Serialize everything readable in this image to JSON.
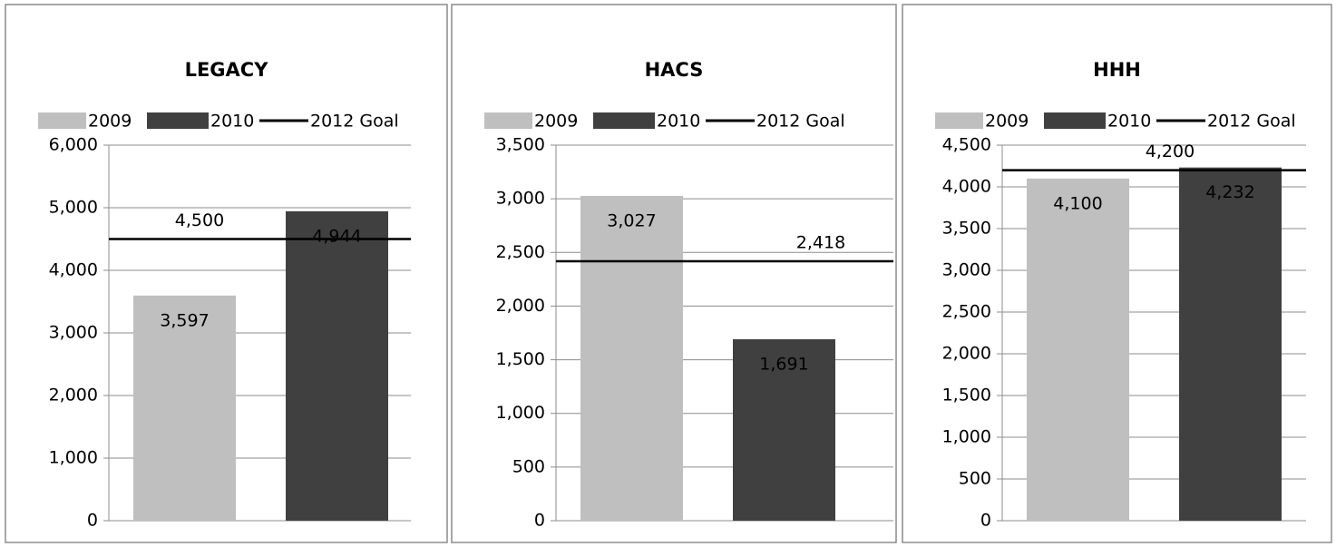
{
  "chart_data": [
    {
      "type": "bar",
      "title": "LEGACY",
      "categories": [
        null
      ],
      "series": [
        {
          "name": "2009",
          "color": "#bfbfbf",
          "values": [
            3597
          ],
          "value_labels": [
            "3,597"
          ]
        },
        {
          "name": "2010",
          "color": "#404040",
          "values": [
            4944
          ],
          "value_labels": [
            "4,944"
          ]
        },
        {
          "name": "2012 Goal",
          "type": "line",
          "color": "#000000",
          "values": [
            4500
          ],
          "value_labels": [
            "4,500"
          ]
        }
      ],
      "ylim": [
        0,
        6000
      ],
      "yticks": [
        0,
        {
          "value": 1000,
          "label": "1,000"
        },
        {
          "value": 2000,
          "label": "2,000"
        },
        {
          "value": 3000,
          "label": "3,000"
        },
        {
          "value": 4000,
          "label": "4,000"
        },
        {
          "value": 5000,
          "label": "5,000"
        },
        {
          "value": 6000,
          "label": "6,000"
        }
      ],
      "grid": true,
      "legend": "top"
    },
    {
      "type": "bar",
      "title": "HACS",
      "categories": [
        null
      ],
      "series": [
        {
          "name": "2009",
          "color": "#bfbfbf",
          "values": [
            3027
          ],
          "value_labels": [
            "3,027"
          ]
        },
        {
          "name": "2010",
          "color": "#404040",
          "values": [
            1691
          ],
          "value_labels": [
            "1,691"
          ]
        },
        {
          "name": "2012 Goal",
          "type": "line",
          "color": "#000000",
          "values": [
            2418
          ],
          "value_labels": [
            "2,418"
          ]
        }
      ],
      "ylim": [
        0,
        3500
      ],
      "yticks": [
        0,
        500,
        {
          "value": 1000,
          "label": "1,000"
        },
        {
          "value": 1500,
          "label": "1,500"
        },
        {
          "value": 2000,
          "label": "2,000"
        },
        {
          "value": 2500,
          "label": "2,500"
        },
        {
          "value": 3000,
          "label": "3,000"
        },
        {
          "value": 3500,
          "label": "3,500"
        }
      ],
      "grid": true,
      "legend": "top"
    },
    {
      "type": "bar",
      "title": "HHH",
      "categories": [
        null
      ],
      "series": [
        {
          "name": "2009",
          "color": "#bfbfbf",
          "values": [
            4100
          ],
          "value_labels": [
            "4,100"
          ]
        },
        {
          "name": "2010",
          "color": "#404040",
          "values": [
            4232
          ],
          "value_labels": [
            "4,232"
          ]
        },
        {
          "name": "2012 Goal",
          "type": "line",
          "color": "#000000",
          "values": [
            4200
          ],
          "value_labels": [
            "4,200"
          ]
        }
      ],
      "ylim": [
        0,
        4500
      ],
      "yticks": [
        0,
        500,
        {
          "value": 1000,
          "label": "1,000"
        },
        {
          "value": 1500,
          "label": "1,500"
        },
        {
          "value": 2000,
          "label": "2,000"
        },
        {
          "value": 2500,
          "label": "2,500"
        },
        {
          "value": 3000,
          "label": "3,000"
        },
        {
          "value": 3500,
          "label": "3,500"
        },
        {
          "value": 4000,
          "label": "4,000"
        },
        {
          "value": 4500,
          "label": "4,500"
        }
      ],
      "grid": true,
      "legend": "top"
    }
  ]
}
